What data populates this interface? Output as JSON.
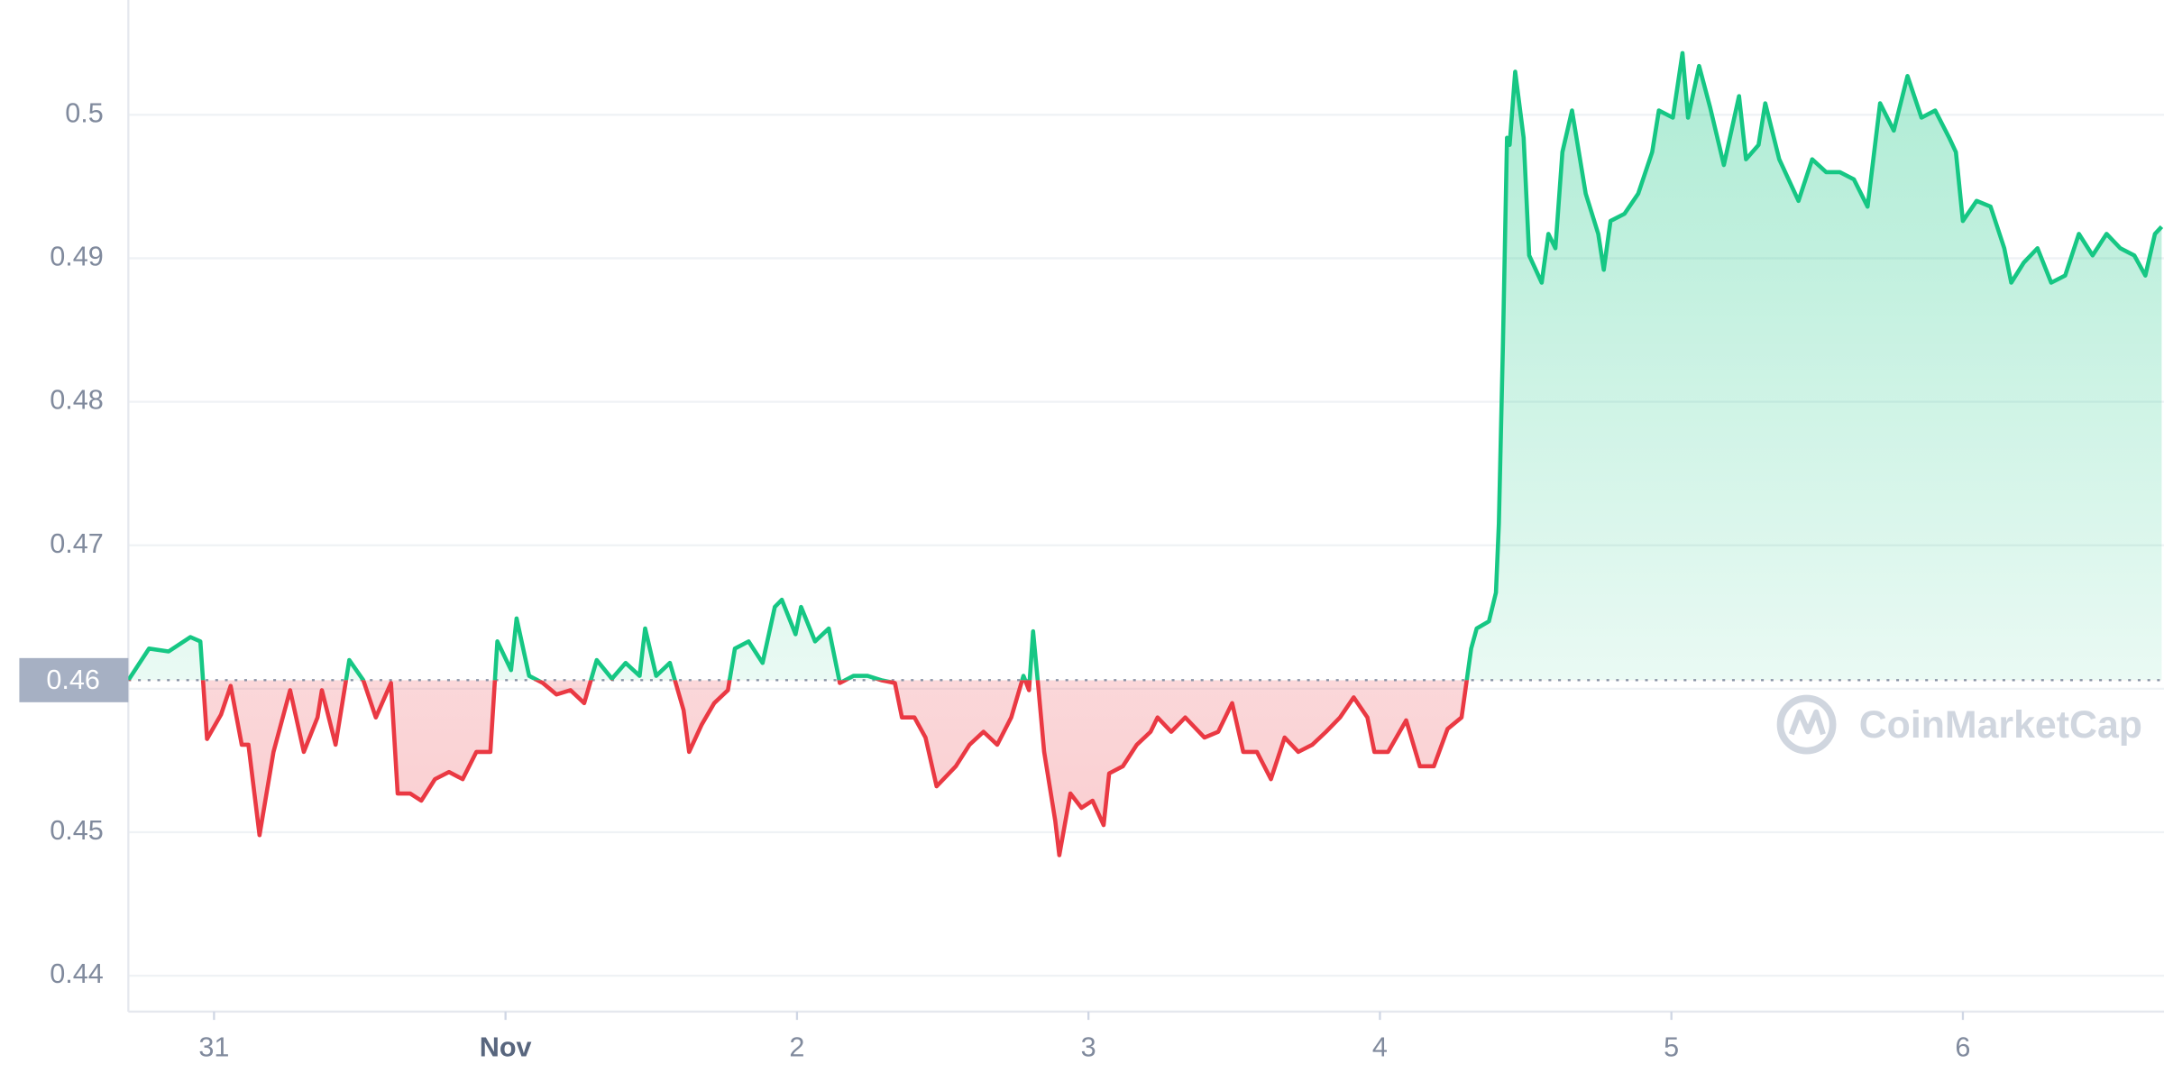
{
  "chart_data": {
    "type": "line",
    "x": [
      -0.294,
      -0.223,
      -0.156,
      -0.081,
      -0.047,
      -0.024,
      0.024,
      0.057,
      0.095,
      0.118,
      0.156,
      0.204,
      0.261,
      0.308,
      0.355,
      0.37,
      0.417,
      0.464,
      0.512,
      0.555,
      0.607,
      0.63,
      0.673,
      0.711,
      0.758,
      0.806,
      0.853,
      0.9,
      0.948,
      0.972,
      1.019,
      1.038,
      1.081,
      1.128,
      1.175,
      1.223,
      1.27,
      1.313,
      1.365,
      1.412,
      1.46,
      1.479,
      1.517,
      1.564,
      1.611,
      1.63,
      1.673,
      1.716,
      1.763,
      1.787,
      1.834,
      1.882,
      1.924,
      1.948,
      1.995,
      2.014,
      2.062,
      2.109,
      2.147,
      2.194,
      2.242,
      2.289,
      2.336,
      2.36,
      2.403,
      2.441,
      2.479,
      2.545,
      2.592,
      2.64,
      2.687,
      2.735,
      2.777,
      2.796,
      2.81,
      2.829,
      2.848,
      2.886,
      2.9,
      2.938,
      2.976,
      3.014,
      3.052,
      3.071,
      3.118,
      3.166,
      3.213,
      3.237,
      3.284,
      3.332,
      3.398,
      3.445,
      3.493,
      3.531,
      3.578,
      3.626,
      3.673,
      3.72,
      3.768,
      3.815,
      3.863,
      3.91,
      3.957,
      3.981,
      4.028,
      4.09,
      4.137,
      4.185,
      4.232,
      4.28,
      4.313,
      4.332,
      4.374,
      4.398,
      4.408,
      4.422,
      4.436,
      4.445,
      4.464,
      4.493,
      4.512,
      4.555,
      4.578,
      4.602,
      4.626,
      4.659,
      4.706,
      4.749,
      4.768,
      4.791,
      4.839,
      4.886,
      4.934,
      4.957,
      5.005,
      5.038,
      5.057,
      5.095,
      5.133,
      5.18,
      5.232,
      5.256,
      5.299,
      5.322,
      5.37,
      5.436,
      5.483,
      5.531,
      5.578,
      5.626,
      5.673,
      5.716,
      5.763,
      5.81,
      5.858,
      5.905,
      5.953,
      5.976,
      6.0,
      6.047,
      6.095,
      6.142,
      6.166,
      6.209,
      6.256,
      6.303,
      6.351,
      6.398,
      6.445,
      6.493,
      6.54,
      6.588,
      6.626,
      6.659,
      6.682
    ],
    "values": [
      0.4606,
      0.4628,
      0.4626,
      0.4636,
      0.4633,
      0.4565,
      0.4582,
      0.4602,
      0.4561,
      0.4561,
      0.4498,
      0.4556,
      0.4599,
      0.4556,
      0.458,
      0.4599,
      0.4561,
      0.462,
      0.4606,
      0.458,
      0.4604,
      0.4527,
      0.4527,
      0.4522,
      0.4537,
      0.4542,
      0.4537,
      0.4556,
      0.4556,
      0.4633,
      0.4613,
      0.4649,
      0.4609,
      0.4604,
      0.4596,
      0.4599,
      0.459,
      0.462,
      0.4607,
      0.4618,
      0.4609,
      0.4642,
      0.4609,
      0.4618,
      0.4585,
      0.4556,
      0.4575,
      0.459,
      0.4599,
      0.4628,
      0.4633,
      0.4618,
      0.4657,
      0.4662,
      0.4638,
      0.4657,
      0.4633,
      0.4642,
      0.4604,
      0.4609,
      0.4609,
      0.4606,
      0.4604,
      0.458,
      0.458,
      0.4566,
      0.4532,
      0.4546,
      0.4561,
      0.457,
      0.4561,
      0.458,
      0.4609,
      0.4599,
      0.464,
      0.4599,
      0.4556,
      0.4508,
      0.4484,
      0.4527,
      0.4517,
      0.4522,
      0.4505,
      0.4541,
      0.4546,
      0.4561,
      0.457,
      0.458,
      0.457,
      0.458,
      0.4566,
      0.457,
      0.459,
      0.4556,
      0.4556,
      0.4537,
      0.4566,
      0.4556,
      0.4561,
      0.457,
      0.458,
      0.4594,
      0.458,
      0.4556,
      0.4556,
      0.4578,
      0.4546,
      0.4546,
      0.4572,
      0.458,
      0.4628,
      0.4642,
      0.4647,
      0.4667,
      0.4715,
      0.484,
      0.4984,
      0.4979,
      0.503,
      0.4984,
      0.4902,
      0.4883,
      0.4917,
      0.4907,
      0.4974,
      0.5003,
      0.4945,
      0.4917,
      0.4892,
      0.4926,
      0.4931,
      0.4945,
      0.4974,
      0.5003,
      0.4998,
      0.5043,
      0.4998,
      0.5034,
      0.5005,
      0.4965,
      0.5013,
      0.4969,
      0.4979,
      0.5008,
      0.4969,
      0.494,
      0.4969,
      0.496,
      0.496,
      0.4955,
      0.4936,
      0.5008,
      0.4989,
      0.5027,
      0.4998,
      0.5003,
      0.4984,
      0.4974,
      0.4926,
      0.494,
      0.4936,
      0.4907,
      0.4883,
      0.4897,
      0.4907,
      0.4883,
      0.4888,
      0.4917,
      0.4902,
      0.4917,
      0.4907,
      0.4902,
      0.4888,
      0.4917,
      0.4922
    ],
    "baseline": {
      "value": 0.4606,
      "label": "0.46"
    },
    "up_color": "#16c784",
    "down_color": "#ea3943",
    "xlim": [
      -0.294,
      6.69
    ],
    "xticks": [
      {
        "value": 0,
        "label": "31"
      },
      {
        "value": 1,
        "label": "Nov"
      },
      2,
      3,
      4,
      5,
      6
    ],
    "ylim": [
      0.4375,
      0.508
    ],
    "yticks": [
      0.44,
      0.45,
      0.46,
      0.47,
      0.48,
      0.49,
      0.5
    ],
    "grid": true,
    "watermark": "CoinMarketCap"
  }
}
